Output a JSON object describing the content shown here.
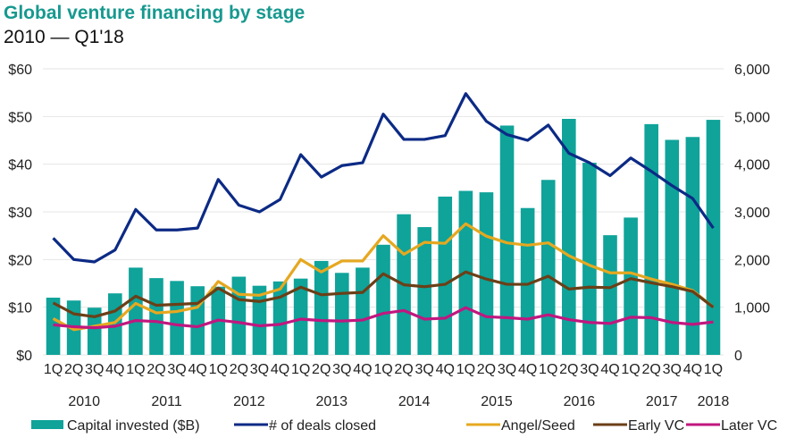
{
  "chart_data": {
    "type": "bar+line",
    "title": "Global venture financing by stage",
    "subtitle": "2010 — Q1'18",
    "categories": [
      "1Q",
      "2Q",
      "3Q",
      "4Q",
      "1Q",
      "2Q",
      "3Q",
      "4Q",
      "1Q",
      "2Q",
      "3Q",
      "4Q",
      "1Q",
      "2Q",
      "3Q",
      "4Q",
      "1Q",
      "2Q",
      "3Q",
      "4Q",
      "1Q",
      "2Q",
      "3Q",
      "4Q",
      "1Q",
      "2Q",
      "3Q",
      "4Q",
      "1Q",
      "2Q",
      "3Q",
      "4Q",
      "1Q"
    ],
    "year_labels": [
      {
        "label": "2010",
        "quarters": [
          0,
          3
        ]
      },
      {
        "label": "2011",
        "quarters": [
          4,
          7
        ]
      },
      {
        "label": "2012",
        "quarters": [
          8,
          11
        ]
      },
      {
        "label": "2013",
        "quarters": [
          12,
          15
        ]
      },
      {
        "label": "2014",
        "quarters": [
          16,
          19
        ]
      },
      {
        "label": "2015",
        "quarters": [
          20,
          23
        ]
      },
      {
        "label": "2016",
        "quarters": [
          24,
          27
        ]
      },
      {
        "label": "2017",
        "quarters": [
          28,
          31
        ]
      },
      {
        "label": "2018",
        "quarters": [
          32,
          32
        ]
      }
    ],
    "y_left": {
      "ticks": [
        "$0",
        "$10",
        "$20",
        "$30",
        "$40",
        "$50",
        "$60"
      ],
      "range": [
        0,
        60
      ]
    },
    "y_right": {
      "ticks": [
        "0",
        "1,000",
        "2,000",
        "3,000",
        "4,000",
        "5,000",
        "6,000"
      ],
      "range": [
        0,
        6000
      ]
    },
    "grid": true,
    "legend_position": "bottom",
    "series": [
      {
        "name": "Capital invested ($B)",
        "type": "bar",
        "axis": "left",
        "color": "#0fa39a",
        "values": [
          12.0,
          11.4,
          9.9,
          12.9,
          18.3,
          16.1,
          15.5,
          14.4,
          14.3,
          16.4,
          14.5,
          15.4,
          16.0,
          19.7,
          17.2,
          18.3,
          23.1,
          29.5,
          26.8,
          33.2,
          34.4,
          34.1,
          48.1,
          30.8,
          36.7,
          49.5,
          40.3,
          25.1,
          28.8,
          48.4,
          45.1,
          45.7,
          49.3
        ]
      },
      {
        "name": "# of deals closed",
        "type": "line",
        "axis": "right",
        "color": "#0c2a85",
        "values": [
          2450,
          2000,
          1950,
          2200,
          3050,
          2620,
          2620,
          2660,
          3680,
          3140,
          3000,
          3260,
          4200,
          3730,
          3970,
          4030,
          5050,
          4520,
          4520,
          4600,
          5480,
          4900,
          4620,
          4500,
          4820,
          4230,
          4030,
          3760,
          4130,
          3850,
          3550,
          3280,
          2660
        ]
      },
      {
        "name": "Angel/Seed",
        "type": "line",
        "axis": "right",
        "color": "#e6a820",
        "values": [
          760,
          530,
          600,
          680,
          1080,
          880,
          910,
          1000,
          1540,
          1270,
          1250,
          1380,
          2000,
          1740,
          1970,
          1970,
          2500,
          2110,
          2360,
          2340,
          2750,
          2490,
          2350,
          2300,
          2350,
          2080,
          1880,
          1720,
          1720,
          1590,
          1480,
          1350,
          1000
        ]
      },
      {
        "name": "Early VC",
        "type": "line",
        "axis": "right",
        "color": "#6b3f17",
        "values": [
          1090,
          860,
          800,
          920,
          1230,
          1040,
          1060,
          1080,
          1400,
          1160,
          1120,
          1210,
          1420,
          1260,
          1290,
          1310,
          1700,
          1470,
          1430,
          1480,
          1740,
          1590,
          1480,
          1480,
          1650,
          1380,
          1420,
          1410,
          1600,
          1510,
          1430,
          1330,
          1000
        ]
      },
      {
        "name": "Later VC",
        "type": "line",
        "axis": "right",
        "color": "#c0177f",
        "values": [
          630,
          590,
          570,
          600,
          720,
          700,
          630,
          590,
          730,
          680,
          610,
          640,
          750,
          720,
          710,
          730,
          870,
          930,
          750,
          770,
          990,
          800,
          780,
          750,
          840,
          740,
          680,
          660,
          790,
          780,
          680,
          640,
          690
        ]
      }
    ]
  }
}
